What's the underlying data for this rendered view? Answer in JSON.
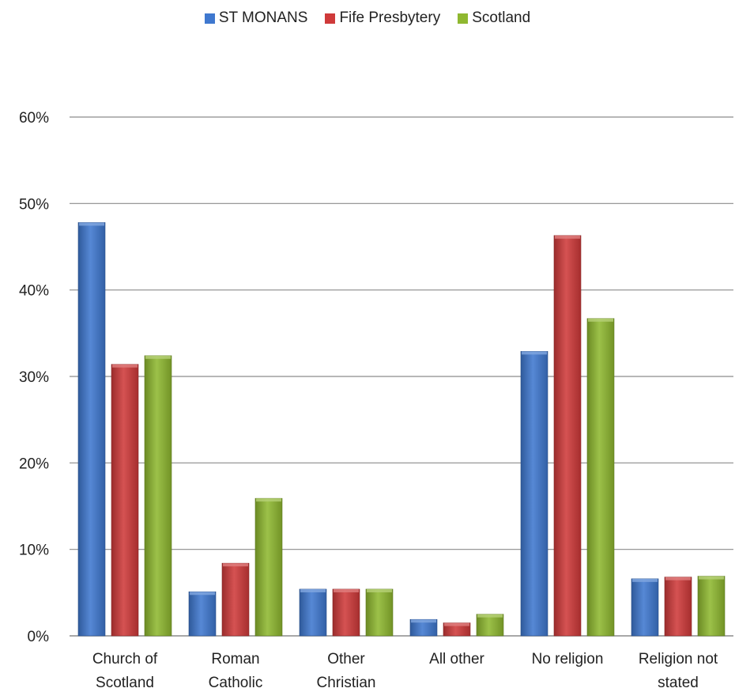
{
  "colors": {
    "st_monans": "#3f78cf",
    "fife": "#cf3a3a",
    "scotland": "#8fb830",
    "grid": "#8c8c8c",
    "axis": "#8c8c8c"
  },
  "chart_data": {
    "type": "bar",
    "title": "",
    "xlabel": "",
    "ylabel": "",
    "ylim": [
      0,
      60
    ],
    "yticks": [
      "0%",
      "10%",
      "20%",
      "30%",
      "40%",
      "50%",
      "60%"
    ],
    "ytick_values": [
      0,
      10,
      20,
      30,
      40,
      50,
      60
    ],
    "grid": true,
    "legend_position": "top-center",
    "categories": [
      [
        "Church of",
        "Scotland"
      ],
      [
        "Roman",
        "Catholic"
      ],
      [
        "Other",
        "Christian"
      ],
      [
        "All other"
      ],
      [
        "No religion"
      ],
      [
        "Religion not",
        "stated"
      ]
    ],
    "series": [
      {
        "name": "ST MONANS",
        "color_key": "st_monans",
        "values": [
          47.8,
          5.1,
          5.4,
          1.9,
          32.9,
          6.6
        ]
      },
      {
        "name": "Fife Presbytery",
        "color_key": "fife",
        "values": [
          31.4,
          8.4,
          5.4,
          1.5,
          46.3,
          6.8
        ]
      },
      {
        "name": "Scotland",
        "color_key": "scotland",
        "values": [
          32.4,
          15.9,
          5.4,
          2.5,
          36.7,
          6.9
        ]
      }
    ]
  }
}
